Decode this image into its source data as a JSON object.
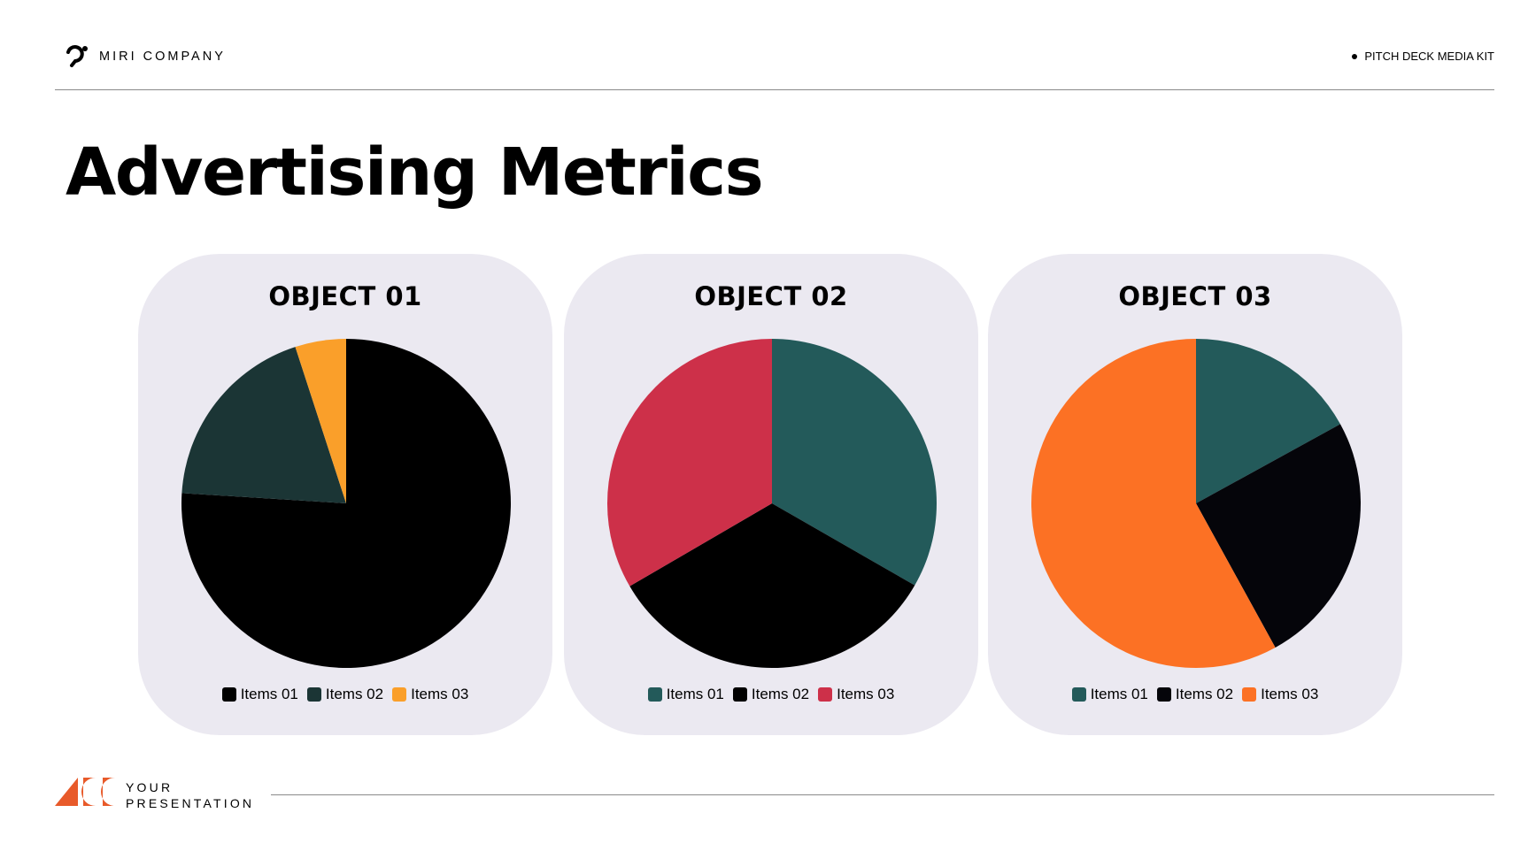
{
  "header": {
    "company": "MIRI COMPANY",
    "tag": "PITCH DECK MEDIA KIT"
  },
  "title": "Advertising Metrics",
  "footer": {
    "line1": "YOUR",
    "line2": "PRESENTATION"
  },
  "colors": {
    "card_bg": "#ebe9f1",
    "logo_orange": "#e85a2a"
  },
  "chart_data": [
    {
      "type": "pie",
      "title": "OBJECT 01",
      "slices": [
        {
          "label": "Items 01",
          "value": 76,
          "color": "#000000"
        },
        {
          "label": "Items 02",
          "value": 19,
          "color": "#1b3535"
        },
        {
          "label": "Items 03",
          "value": 5,
          "color": "#fa9f2a"
        }
      ]
    },
    {
      "type": "pie",
      "title": "OBJECT 02",
      "slices": [
        {
          "label": "Items 01",
          "value": 33.3,
          "color": "#235a5a"
        },
        {
          "label": "Items 02",
          "value": 33.3,
          "color": "#000000"
        },
        {
          "label": "Items 03",
          "value": 33.4,
          "color": "#cd3049"
        }
      ]
    },
    {
      "type": "pie",
      "title": "OBJECT 03",
      "slices": [
        {
          "label": "Items 01",
          "value": 17,
          "color": "#235a5a"
        },
        {
          "label": "Items 02",
          "value": 25,
          "color": "#05050a"
        },
        {
          "label": "Items 03",
          "value": 58,
          "color": "#fc7124"
        }
      ]
    }
  ]
}
